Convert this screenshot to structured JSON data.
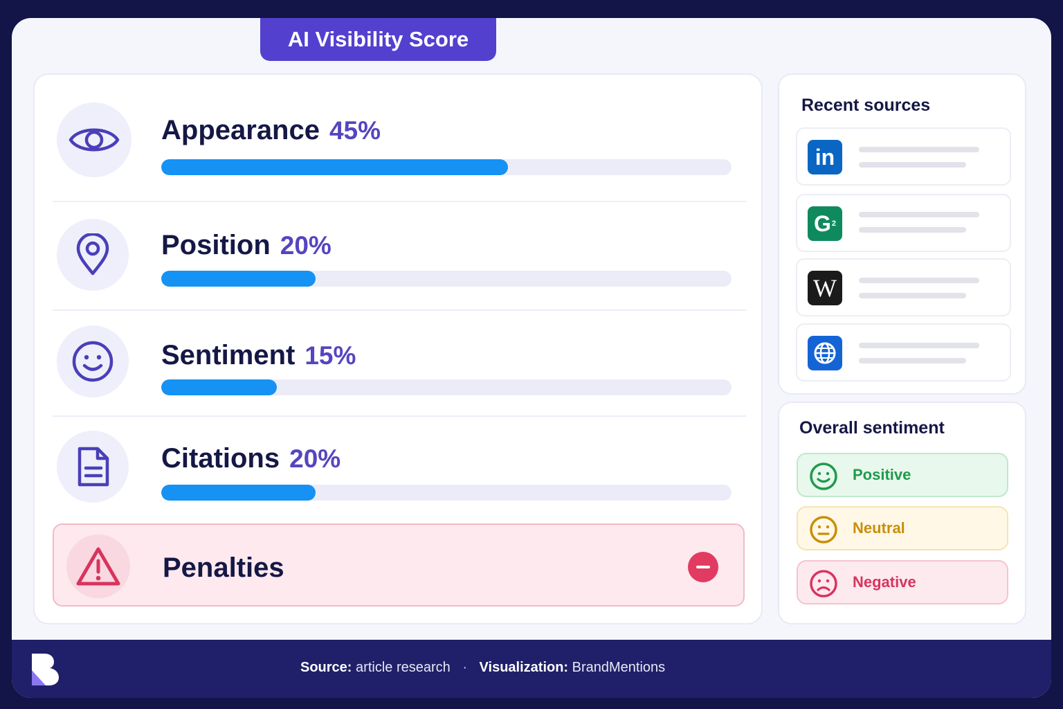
{
  "title": "AI Visibility Score",
  "metrics": [
    {
      "label": "Appearance",
      "percent_text": "45%",
      "value": 0.45,
      "icon": "eye-icon"
    },
    {
      "label": "Position",
      "percent_text": "20%",
      "value": 0.2,
      "icon": "location-pin-icon"
    },
    {
      "label": "Sentiment",
      "percent_text": "15%",
      "value": 0.15,
      "icon": "smiley-icon"
    },
    {
      "label": "Citations",
      "percent_text": "20%",
      "value": 0.2,
      "icon": "document-icon"
    }
  ],
  "penalties": {
    "label": "Penalties",
    "icon": "warning-icon",
    "action_icon": "minus-icon"
  },
  "sources": {
    "title": "Recent sources",
    "items": [
      {
        "name": "linkedin",
        "logo_text": "in",
        "icon": "linkedin-logo-icon",
        "color": "#0a66c2"
      },
      {
        "name": "g2",
        "logo_text": "G",
        "icon": "g2-logo-icon",
        "color": "#0f8a5f"
      },
      {
        "name": "wikipedia",
        "logo_text": "W",
        "icon": "wikipedia-logo-icon",
        "color": "#1b1b1b"
      },
      {
        "name": "website",
        "logo_text": "",
        "icon": "globe-icon",
        "color": "#1464d6"
      }
    ]
  },
  "sentiment": {
    "title": "Overall sentiment",
    "items": [
      {
        "label": "Positive",
        "icon": "happy-face-icon",
        "color": "#1f9a4e"
      },
      {
        "label": "Neutral",
        "icon": "neutral-face-icon",
        "color": "#c88f0a"
      },
      {
        "label": "Negative",
        "icon": "sad-face-icon",
        "color": "#d8345e"
      }
    ]
  },
  "footer": {
    "source_label": "Source:",
    "source_value": "article research",
    "separator": "·",
    "viz_label": "Visualization:",
    "viz_value": "BrandMentions"
  }
}
